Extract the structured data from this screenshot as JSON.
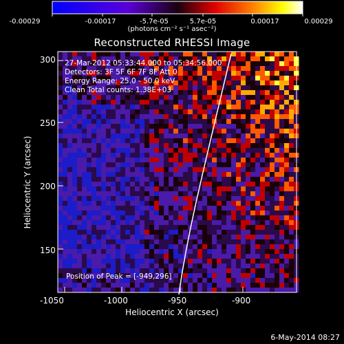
{
  "colorbar": {
    "tick_labels": [
      "-0.00029",
      "-0.00017",
      "-5.7e-05",
      "5.7e-05",
      "0.00017",
      "0.00029"
    ],
    "units": "(photons cm⁻² s⁻¹ asec⁻²)",
    "colors": [
      "#0000ff",
      "#6a00c8",
      "#ff0000",
      "#ff8000",
      "#ffff00",
      "#ffffff"
    ]
  },
  "title": "Reconstructed RHESSI Image",
  "info": {
    "line1": "27-Mar-2012 05:33:44.000 to 05:34:56.000",
    "line2": "Detectors: 3F 5F 6F 7F 8F  Att 0",
    "line3": "Energy Range: 25.0 - 50.0 keV",
    "line4": "Clean    Total counts: 1.38E+03"
  },
  "axes": {
    "xlabel": "Heliocentric X (arcsec)",
    "ylabel": "Heliocentric Y (arcsec)",
    "x_ticks": [
      "-1050",
      "-1000",
      "-950",
      "-900"
    ],
    "y_ticks": [
      "150",
      "200",
      "250",
      "300"
    ],
    "x_range": [
      -1070,
      -865
    ],
    "y_range": [
      115,
      310
    ]
  },
  "peak_text": "Position of Peak = [-949,296]",
  "footer_date": "6-May-2014 08:27"
}
